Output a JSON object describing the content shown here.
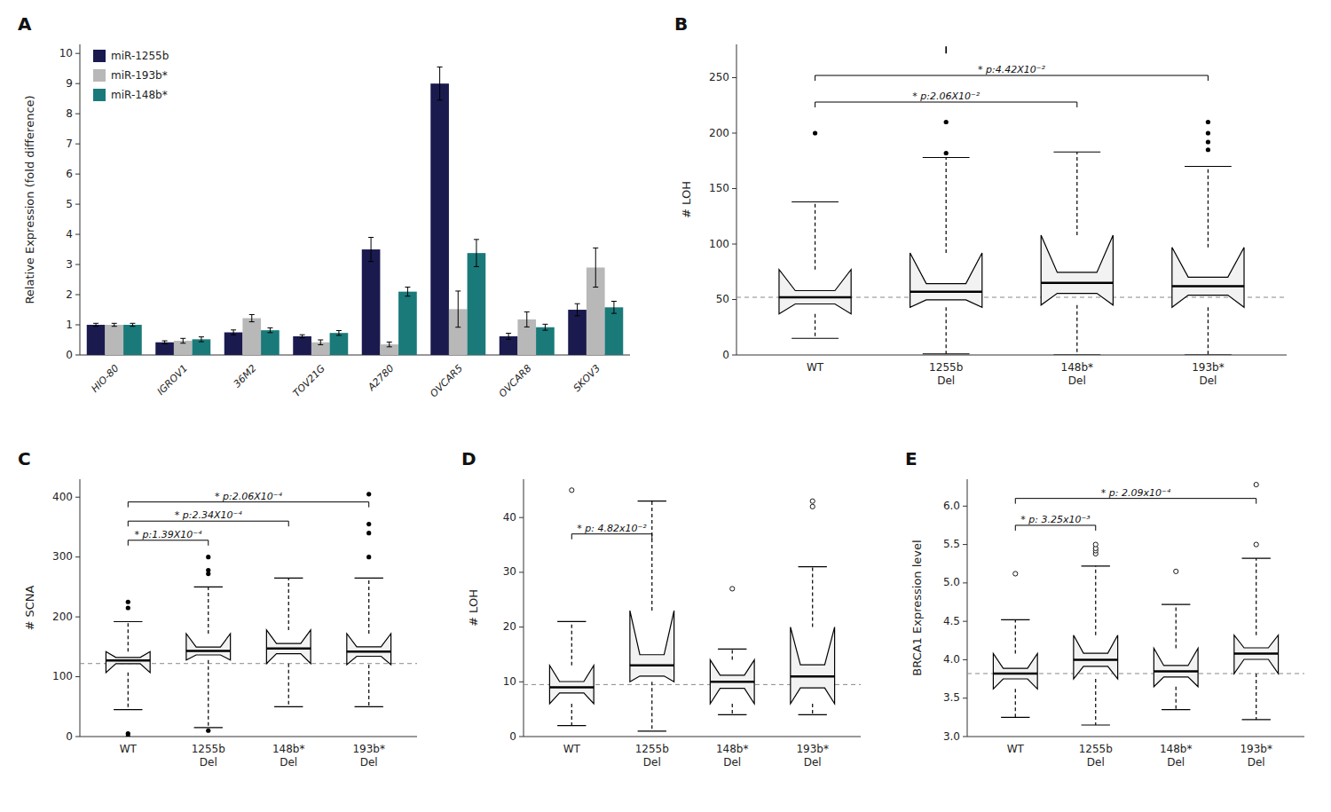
{
  "chart_data": [
    {
      "type": "bar",
      "title": "A",
      "categories": [
        "HIO-80",
        "IGROV1",
        "36M2",
        "TOV21G",
        "A2780",
        "OVCAR5",
        "OVCAR8",
        "SKOV3"
      ],
      "series": [
        {
          "name": "miR-1255b",
          "color": "#1a1a4e",
          "values": [
            1.0,
            0.42,
            0.75,
            0.62,
            3.5,
            9.0,
            0.62,
            1.5
          ],
          "errors": [
            0.05,
            0.05,
            0.08,
            0.05,
            0.4,
            0.55,
            0.1,
            0.2
          ]
        },
        {
          "name": "miR-193b*",
          "color": "#b8b8b8",
          "values": [
            1.0,
            0.47,
            1.22,
            0.42,
            0.35,
            1.52,
            1.18,
            2.9
          ],
          "errors": [
            0.05,
            0.08,
            0.12,
            0.08,
            0.08,
            0.6,
            0.25,
            0.65
          ]
        },
        {
          "name": "miR-148b*",
          "color": "#1a7a7a",
          "values": [
            1.0,
            0.52,
            0.82,
            0.73,
            2.1,
            3.38,
            0.92,
            1.58
          ],
          "errors": [
            0.05,
            0.08,
            0.08,
            0.08,
            0.15,
            0.45,
            0.1,
            0.2
          ]
        }
      ],
      "ylabel": "Relative Expression (fold difference)",
      "ylim": [
        0,
        10.3
      ],
      "yticks": [
        0,
        1,
        2,
        3,
        4,
        5,
        6,
        7,
        8,
        9,
        10
      ],
      "legend": "upper left",
      "grid": false
    },
    {
      "type": "box",
      "title": "B",
      "categories": [
        "WT",
        "1255b\nDel",
        "148b*\nDel",
        "193b*\nDel"
      ],
      "ylabel": "# LOH",
      "ylim": [
        0,
        280
      ],
      "yticks": [
        0,
        50,
        100,
        150,
        200,
        250
      ],
      "reference_line": 52,
      "boxes": [
        {
          "q1": 37,
          "median": 52,
          "q3": 77,
          "whisker_low": 15,
          "whisker_high": 138,
          "outliers": [
            200
          ],
          "outliers_open": []
        },
        {
          "q1": 43,
          "median": 57,
          "q3": 92,
          "whisker_low": 1,
          "whisker_high": 178,
          "outliers": [
            182,
            210
          ],
          "outliers_open": [],
          "outliers_truncated": [
            275
          ]
        },
        {
          "q1": 45,
          "median": 65,
          "q3": 108,
          "whisker_low": 0,
          "whisker_high": 183,
          "outliers": [],
          "outliers_open": []
        },
        {
          "q1": 43,
          "median": 62,
          "q3": 97,
          "whisker_low": 0,
          "whisker_high": 170,
          "outliers": [
            185,
            192,
            200,
            210
          ],
          "outliers_open": []
        }
      ],
      "annotations": [
        {
          "from": "WT",
          "to": "148b*\nDel",
          "y": 228,
          "text": "* p:2.06X10⁻²"
        },
        {
          "from": "WT",
          "to": "193b*\nDel",
          "y": 252,
          "text": "* p:4.42X10⁻²"
        }
      ],
      "grid": false
    },
    {
      "type": "box",
      "title": "C",
      "categories": [
        "WT",
        "1255b\nDel",
        "148b*\nDel",
        "193b*\nDel"
      ],
      "ylabel": "# SCNA",
      "ylim": [
        0,
        430
      ],
      "yticks": [
        0,
        100,
        200,
        300,
        400
      ],
      "reference_line": 122,
      "boxes": [
        {
          "q1": 107,
          "median": 127,
          "q3": 142,
          "whisker_low": 45,
          "whisker_high": 192,
          "outliers": [
            0,
            5,
            215,
            225
          ]
        },
        {
          "q1": 128,
          "median": 143,
          "q3": 172,
          "whisker_low": 15,
          "whisker_high": 250,
          "outliers": [
            10,
            272,
            278,
            300
          ]
        },
        {
          "q1": 122,
          "median": 147,
          "q3": 178,
          "whisker_low": 50,
          "whisker_high": 265,
          "outliers": []
        },
        {
          "q1": 120,
          "median": 142,
          "q3": 172,
          "whisker_low": 50,
          "whisker_high": 265,
          "outliers": [
            300,
            340,
            355,
            405
          ]
        }
      ],
      "annotations": [
        {
          "from": "WT",
          "to": "1255b\nDel",
          "y": 328,
          "text": "* p:1.39X10⁻⁴"
        },
        {
          "from": "WT",
          "to": "148b*\nDel",
          "y": 360,
          "text": "* p:2.34X10⁻⁴"
        },
        {
          "from": "WT",
          "to": "193b*\nDel",
          "y": 392,
          "text": "* p:2.06X10⁻⁴"
        }
      ],
      "grid": false
    },
    {
      "type": "box",
      "title": "D",
      "categories": [
        "WT",
        "1255b\nDel",
        "148b*\nDel",
        "193b*\nDel"
      ],
      "ylabel": "# LOH",
      "ylim": [
        0,
        47
      ],
      "yticks": [
        0,
        10,
        20,
        30,
        40
      ],
      "reference_line": 9.5,
      "boxes": [
        {
          "q1": 6,
          "median": 9,
          "q3": 13,
          "whisker_low": 2,
          "whisker_high": 21,
          "outliers": [],
          "outliers_open": [
            45
          ]
        },
        {
          "q1": 10,
          "median": 13,
          "q3": 23,
          "whisker_low": 1,
          "whisker_high": 43,
          "outliers": [],
          "outliers_open": []
        },
        {
          "q1": 6,
          "median": 10,
          "q3": 14,
          "whisker_low": 4,
          "whisker_high": 16,
          "outliers": [],
          "outliers_open": [
            27
          ]
        },
        {
          "q1": 6,
          "median": 11,
          "q3": 20,
          "whisker_low": 4,
          "whisker_high": 31,
          "outliers": [],
          "outliers_open": [
            42,
            43
          ]
        }
      ],
      "annotations": [
        {
          "from": "WT",
          "to": "1255b\nDel",
          "y": 37,
          "text": "* p: 4.82x10⁻²"
        }
      ],
      "grid": false
    },
    {
      "type": "box",
      "title": "E",
      "categories": [
        "WT",
        "1255b\nDel",
        "148b*\nDel",
        "193b*\nDel"
      ],
      "ylabel": "BRCA1 Expression level",
      "ylim": [
        3.0,
        6.35
      ],
      "yticks": [
        {
          "value": 3.0,
          "label": "3.0"
        },
        3.5,
        {
          "value": 4.0,
          "label": "4.0"
        },
        4.5,
        {
          "value": 5.0,
          "label": "5.0"
        },
        5.5,
        {
          "value": 6.0,
          "label": "6.0"
        }
      ],
      "reference_line": 3.82,
      "boxes": [
        {
          "q1": 3.62,
          "median": 3.82,
          "q3": 4.08,
          "whisker_low": 3.25,
          "whisker_high": 4.52,
          "outliers": [],
          "outliers_open": [
            5.12
          ]
        },
        {
          "q1": 3.75,
          "median": 4.0,
          "q3": 4.32,
          "whisker_low": 3.15,
          "whisker_high": 5.22,
          "outliers": [],
          "outliers_open": [
            5.38,
            5.42,
            5.45,
            5.5
          ]
        },
        {
          "q1": 3.65,
          "median": 3.85,
          "q3": 4.15,
          "whisker_low": 3.35,
          "whisker_high": 4.72,
          "outliers": [],
          "outliers_open": [
            5.15
          ]
        },
        {
          "q1": 3.82,
          "median": 4.08,
          "q3": 4.32,
          "whisker_low": 3.22,
          "whisker_high": 5.32,
          "outliers": [],
          "outliers_open": [
            5.5,
            6.28
          ]
        }
      ],
      "annotations": [
        {
          "from": "WT",
          "to": "1255b\nDel",
          "y": 5.75,
          "text": "* p: 3.25x10⁻³"
        },
        {
          "from": "WT",
          "to": "193b*\nDel",
          "y": 6.1,
          "text": "* p: 2.09x10⁻⁴"
        }
      ],
      "grid": false
    }
  ]
}
